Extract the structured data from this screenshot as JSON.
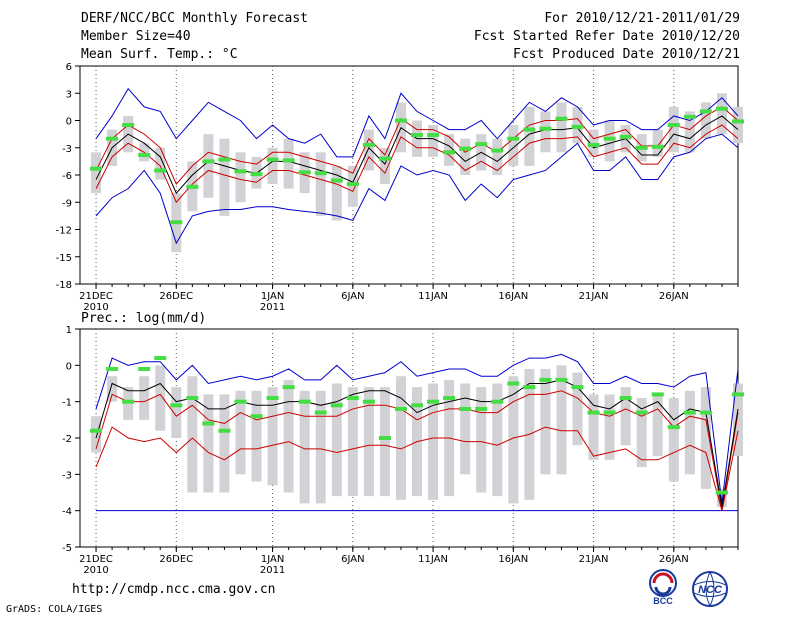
{
  "header": {
    "title": "DERF/NCC/BCC Monthly Forecast",
    "member_size": "Member Size=40",
    "variable": "Mean Surf. Temp.: °C",
    "forecast_period": "For 2010/12/21-2011/01/29",
    "started_refer": "Fcst Started Refer Date 2010/12/20",
    "produced": "Fcst Produced Date 2010/12/21"
  },
  "footer": {
    "url": "http://cmdp.ncc.cma.gov.cn",
    "credit": "GrADS: COLA/IGES",
    "logo_bcc": "BCC",
    "logo_ncc": "NCC"
  },
  "colors": {
    "ensemble_mean": "#000000",
    "std_band": "#cc0000",
    "extreme": "#0000cc",
    "median": "#44dd44",
    "box": "#d2d2d6",
    "grid": "#555555"
  },
  "chart_data": [
    {
      "type": "line",
      "title": "Mean Surf. Temp.: °C",
      "x_tick_labels": [
        {
          "day": 1,
          "label": "21DEC",
          "sub": "2010"
        },
        {
          "day": 6,
          "label": "26DEC",
          "sub": ""
        },
        {
          "day": 12,
          "label": "1JAN",
          "sub": "2011"
        },
        {
          "day": 17,
          "label": "6JAN",
          "sub": ""
        },
        {
          "day": 22,
          "label": "11JAN",
          "sub": ""
        },
        {
          "day": 27,
          "label": "16JAN",
          "sub": ""
        },
        {
          "day": 32,
          "label": "21JAN",
          "sub": ""
        },
        {
          "day": 37,
          "label": "26JAN",
          "sub": ""
        }
      ],
      "xlim": [
        0,
        41
      ],
      "ylim": [
        -18,
        6
      ],
      "y_ticks": [
        6,
        3,
        0,
        -3,
        -6,
        -9,
        -12,
        -15,
        -18
      ],
      "series": [
        {
          "name": "ensemble_mean",
          "values": [
            -6.5,
            -3.0,
            -1.5,
            -2.5,
            -4.0,
            -8.0,
            -6.0,
            -4.5,
            -5.0,
            -5.5,
            -5.8,
            -4.5,
            -4.5,
            -5.0,
            -5.5,
            -6.0,
            -6.8,
            -3.0,
            -4.8,
            -0.8,
            -2.0,
            -2.0,
            -2.8,
            -4.5,
            -3.5,
            -4.5,
            -3.0,
            -1.5,
            -1.0,
            -1.0,
            -0.8,
            -3.0,
            -2.5,
            -2.0,
            -3.8,
            -3.8,
            -1.5,
            -2.0,
            -0.5,
            0.5,
            -1.0
          ]
        },
        {
          "name": "std_upper",
          "values": [
            -5.5,
            -2.0,
            -0.5,
            -1.5,
            -3.0,
            -7.0,
            -5.0,
            -3.5,
            -4.0,
            -4.5,
            -4.8,
            -3.5,
            -3.5,
            -4.0,
            -4.5,
            -5.0,
            -5.8,
            -2.0,
            -3.8,
            0.2,
            -1.0,
            -1.0,
            -1.8,
            -3.5,
            -2.5,
            -3.5,
            -2.0,
            -0.5,
            0.0,
            0.0,
            0.2,
            -2.0,
            -1.5,
            -1.0,
            -2.8,
            -2.8,
            -0.5,
            -1.0,
            0.5,
            1.5,
            0.0
          ]
        },
        {
          "name": "std_lower",
          "values": [
            -7.5,
            -4.0,
            -2.5,
            -3.5,
            -5.0,
            -9.0,
            -7.0,
            -5.5,
            -6.0,
            -6.5,
            -6.8,
            -5.5,
            -5.5,
            -6.0,
            -6.5,
            -7.0,
            -7.8,
            -4.0,
            -5.8,
            -1.8,
            -3.0,
            -3.0,
            -3.8,
            -5.5,
            -4.5,
            -5.5,
            -4.0,
            -2.5,
            -2.0,
            -2.0,
            -1.8,
            -4.0,
            -3.5,
            -3.0,
            -4.8,
            -4.8,
            -2.5,
            -3.0,
            -1.5,
            -0.5,
            -2.0
          ]
        },
        {
          "name": "max",
          "values": [
            -2.0,
            0.5,
            3.5,
            1.5,
            1.0,
            -2.0,
            0.0,
            2.0,
            1.0,
            0.0,
            -2.0,
            -0.5,
            -2.0,
            -2.5,
            -1.5,
            -4.0,
            -4.0,
            0.5,
            -2.0,
            3.0,
            1.0,
            0.0,
            -1.0,
            -1.0,
            0.0,
            -2.0,
            0.0,
            2.0,
            1.0,
            2.5,
            1.5,
            -0.5,
            0.0,
            0.0,
            -1.0,
            -1.0,
            0.5,
            0.0,
            1.0,
            2.5,
            0.5
          ]
        },
        {
          "name": "min",
          "values": [
            -10.5,
            -8.5,
            -7.5,
            -5.5,
            -8.0,
            -13.5,
            -10.5,
            -10.0,
            -9.8,
            -9.8,
            -9.5,
            -9.5,
            -9.8,
            -10.0,
            -10.2,
            -10.5,
            -11.0,
            -7.5,
            -8.8,
            -5.0,
            -6.0,
            -5.5,
            -6.0,
            -8.8,
            -7.0,
            -8.5,
            -6.5,
            -6.0,
            -5.5,
            -4.0,
            -2.5,
            -5.5,
            -5.5,
            -4.0,
            -6.5,
            -6.5,
            -4.0,
            -3.5,
            -2.0,
            -1.5,
            -3.0
          ]
        },
        {
          "name": "median",
          "values": [
            -5.3,
            -2.0,
            -0.5,
            -3.8,
            -5.5,
            -11.2,
            -7.3,
            -4.5,
            -4.3,
            -5.6,
            -5.9,
            -4.3,
            -4.4,
            -5.7,
            -5.8,
            -6.6,
            -7.0,
            -2.7,
            -4.2,
            0.0,
            -1.6,
            -1.6,
            -3.5,
            -3.1,
            -2.6,
            -3.3,
            -2.0,
            -1.0,
            -0.9,
            0.2,
            -0.7,
            -2.7,
            -2.0,
            -1.8,
            -3.0,
            -2.9,
            -0.5,
            0.4,
            1.0,
            1.3,
            -0.1
          ]
        },
        {
          "name": "box_upper",
          "values": [
            -3.5,
            -1.0,
            0.5,
            -2.5,
            -3.0,
            -8.0,
            -4.5,
            -1.5,
            -2.0,
            -3.5,
            -4.0,
            -3.0,
            -2.0,
            -3.5,
            -3.5,
            -5.0,
            -5.0,
            -1.0,
            -3.0,
            2.0,
            0.0,
            -0.5,
            -1.5,
            -2.0,
            -1.5,
            -2.0,
            -0.5,
            1.5,
            1.0,
            2.0,
            1.5,
            -1.0,
            0.0,
            -0.5,
            -1.5,
            -1.0,
            1.5,
            1.0,
            2.0,
            3.0,
            1.5
          ]
        },
        {
          "name": "box_lower",
          "values": [
            -8.0,
            -5.0,
            -3.5,
            -4.5,
            -6.5,
            -14.5,
            -10.0,
            -8.5,
            -10.5,
            -9.0,
            -7.5,
            -7.0,
            -7.5,
            -8.0,
            -10.5,
            -11.0,
            -9.5,
            -5.5,
            -7.0,
            -3.5,
            -4.0,
            -4.0,
            -5.0,
            -6.0,
            -5.5,
            -6.0,
            -5.0,
            -5.0,
            -3.5,
            -3.5,
            -2.5,
            -4.0,
            -4.5,
            -3.5,
            -4.5,
            -4.0,
            -3.5,
            -3.5,
            -2.0,
            -1.5,
            -2.5
          ]
        }
      ]
    },
    {
      "type": "line",
      "title": "Prec.: log(mm/d)",
      "x_tick_labels": [
        {
          "day": 1,
          "label": "21DEC",
          "sub": "2010"
        },
        {
          "day": 6,
          "label": "26DEC",
          "sub": ""
        },
        {
          "day": 12,
          "label": "1JAN",
          "sub": "2011"
        },
        {
          "day": 17,
          "label": "6JAN",
          "sub": ""
        },
        {
          "day": 22,
          "label": "11JAN",
          "sub": ""
        },
        {
          "day": 27,
          "label": "16JAN",
          "sub": ""
        },
        {
          "day": 32,
          "label": "21JAN",
          "sub": ""
        },
        {
          "day": 37,
          "label": "26JAN",
          "sub": ""
        }
      ],
      "xlim": [
        0,
        41
      ],
      "ylim": [
        -5,
        1
      ],
      "y_ticks": [
        1,
        0,
        -1,
        -2,
        -3,
        -4,
        -5
      ],
      "series": [
        {
          "name": "ensemble_mean",
          "values": [
            -2.0,
            -0.5,
            -0.7,
            -0.7,
            -0.5,
            -1.0,
            -0.9,
            -1.2,
            -1.2,
            -1.0,
            -1.1,
            -1.1,
            -1.0,
            -1.0,
            -1.1,
            -1.0,
            -0.8,
            -0.7,
            -0.7,
            -0.9,
            -1.3,
            -1.1,
            -1.0,
            -0.9,
            -1.0,
            -1.0,
            -0.8,
            -0.5,
            -0.5,
            -0.4,
            -0.6,
            -1.1,
            -1.2,
            -0.9,
            -1.2,
            -1.0,
            -1.5,
            -1.2,
            -1.3,
            -3.9,
            -1.2
          ]
        },
        {
          "name": "std_upper",
          "values": [
            -2.3,
            -0.8,
            -1.0,
            -1.0,
            -0.8,
            -1.4,
            -1.1,
            -1.5,
            -1.6,
            -1.3,
            -1.5,
            -1.4,
            -1.3,
            -1.4,
            -1.4,
            -1.4,
            -1.2,
            -1.1,
            -1.1,
            -1.2,
            -1.5,
            -1.3,
            -1.2,
            -1.2,
            -1.3,
            -1.3,
            -1.0,
            -0.8,
            -0.8,
            -0.7,
            -0.9,
            -1.3,
            -1.4,
            -1.2,
            -1.4,
            -1.2,
            -1.7,
            -1.4,
            -1.5,
            -4.0,
            -1.3
          ]
        },
        {
          "name": "std_lower",
          "values": [
            -2.8,
            -1.7,
            -2.0,
            -2.1,
            -2.0,
            -2.4,
            -2.0,
            -2.4,
            -2.6,
            -2.3,
            -2.3,
            -2.2,
            -2.1,
            -2.3,
            -2.3,
            -2.4,
            -2.3,
            -2.2,
            -2.2,
            -2.3,
            -2.1,
            -2.0,
            -2.0,
            -2.1,
            -2.1,
            -2.2,
            -2.0,
            -1.9,
            -1.7,
            -1.8,
            -1.8,
            -2.5,
            -2.4,
            -2.3,
            -2.6,
            -2.6,
            -2.4,
            -2.2,
            -2.4,
            -4.0,
            -1.8
          ]
        },
        {
          "name": "max",
          "values": [
            -1.2,
            0.2,
            0.0,
            0.1,
            0.1,
            -0.4,
            0.0,
            -0.5,
            -0.4,
            -0.3,
            -0.4,
            -0.3,
            -0.1,
            -0.4,
            -0.4,
            0.0,
            -0.4,
            -0.3,
            -0.2,
            0.1,
            -0.3,
            -0.2,
            -0.1,
            -0.1,
            -0.3,
            -0.3,
            0.0,
            0.2,
            0.2,
            0.3,
            0.1,
            -0.5,
            -0.5,
            -0.3,
            -0.5,
            -0.5,
            -0.6,
            -0.3,
            -0.2,
            -3.8,
            -0.1
          ]
        },
        {
          "name": "min",
          "values": [
            -4.0,
            -4.0,
            -4.0,
            -4.0,
            -4.0,
            -4.0,
            -4.0,
            -4.0,
            -4.0,
            -4.0,
            -4.0,
            -4.0,
            -4.0,
            -4.0,
            -4.0,
            -4.0,
            -4.0,
            -4.0,
            -4.0,
            -4.0,
            -4.0,
            -4.0,
            -4.0,
            -4.0,
            -4.0,
            -4.0,
            -4.0,
            -4.0,
            -4.0,
            -4.0,
            -4.0,
            -4.0,
            -4.0,
            -4.0,
            -4.0,
            -4.0,
            -4.0,
            -4.0,
            -4.0,
            -4.0,
            -4.0
          ]
        },
        {
          "name": "median",
          "values": [
            -1.8,
            -0.1,
            -1.0,
            -0.1,
            0.2,
            -1.1,
            -0.9,
            -1.6,
            -1.8,
            -1.0,
            -1.4,
            -0.9,
            -0.6,
            -1.0,
            -1.3,
            -1.1,
            -0.9,
            -1.0,
            -2.0,
            -1.2,
            -1.1,
            -1.0,
            -0.9,
            -1.2,
            -1.2,
            -1.0,
            -0.5,
            -0.6,
            -0.4,
            -0.4,
            -0.6,
            -1.3,
            -1.3,
            -0.9,
            -1.3,
            -0.8,
            -1.7,
            -1.3,
            -1.3,
            -3.5,
            -0.8
          ]
        },
        {
          "name": "box_upper",
          "values": [
            -1.4,
            -0.3,
            -0.6,
            -0.3,
            0.0,
            -0.6,
            -0.3,
            -0.8,
            -0.8,
            -0.7,
            -0.7,
            -0.6,
            -0.4,
            -0.7,
            -0.7,
            -0.5,
            -0.6,
            -0.6,
            -0.6,
            -0.3,
            -0.6,
            -0.5,
            -0.4,
            -0.5,
            -0.6,
            -0.5,
            -0.3,
            -0.1,
            -0.1,
            0.0,
            -0.2,
            -0.8,
            -0.8,
            -0.6,
            -0.9,
            -0.8,
            -0.9,
            -0.7,
            -0.6,
            -3.4,
            -0.5
          ]
        },
        {
          "name": "box_lower",
          "values": [
            -2.4,
            -1.0,
            -1.5,
            -1.5,
            -1.8,
            -2.0,
            -3.5,
            -3.5,
            -3.5,
            -3.0,
            -3.2,
            -3.3,
            -3.5,
            -3.8,
            -3.8,
            -3.6,
            -3.6,
            -3.6,
            -3.6,
            -3.7,
            -3.6,
            -3.7,
            -3.6,
            -3.0,
            -3.5,
            -3.6,
            -3.8,
            -3.7,
            -3.0,
            -3.0,
            -2.2,
            -2.6,
            -2.6,
            -2.2,
            -2.8,
            -2.5,
            -3.2,
            -3.0,
            -3.4,
            -3.9,
            -2.5
          ]
        }
      ]
    }
  ]
}
